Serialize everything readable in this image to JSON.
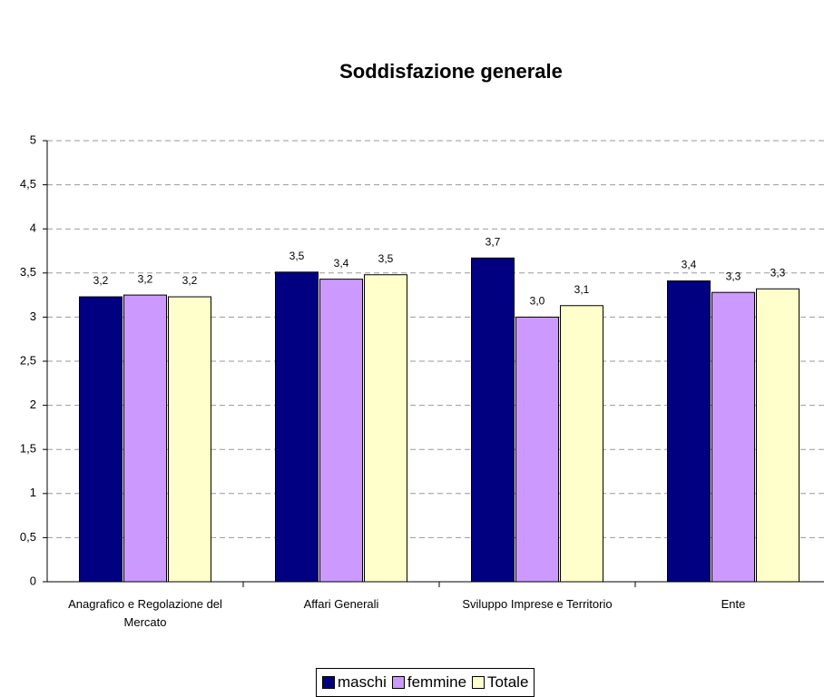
{
  "chart_data": {
    "type": "bar",
    "title": "Soddisfazione generale",
    "categories": [
      "Anagrafico e Regolazione del Mercato",
      "Affari Generali",
      "Sviluppo Imprese e Territorio",
      "Ente"
    ],
    "series": [
      {
        "name": "maschi",
        "color": "#000080",
        "values": [
          3.23,
          3.51,
          3.67,
          3.41
        ],
        "value_labels": [
          "3,2",
          "3,5",
          "3,7",
          "3,4"
        ]
      },
      {
        "name": "femmine",
        "color": "#cc99ff",
        "values": [
          3.25,
          3.43,
          3.0,
          3.28
        ],
        "value_labels": [
          "3,2",
          "3,4",
          "3,0",
          "3,3"
        ]
      },
      {
        "name": "Totale",
        "color": "#ffffcc",
        "values": [
          3.23,
          3.48,
          3.13,
          3.32
        ],
        "value_labels": [
          "3,2",
          "3,5",
          "3,1",
          "3,3"
        ]
      }
    ],
    "ylim": [
      0,
      5
    ],
    "yticks": [
      0,
      {
        "value": 0.5,
        "label": "0,5"
      },
      1,
      {
        "value": 1.5,
        "label": "1,5"
      },
      2,
      {
        "value": 2.5,
        "label": "2,5"
      },
      3,
      {
        "value": 3.5,
        "label": "3,5"
      },
      4,
      {
        "value": 4.5,
        "label": "4,5"
      },
      5
    ],
    "grid": true
  }
}
